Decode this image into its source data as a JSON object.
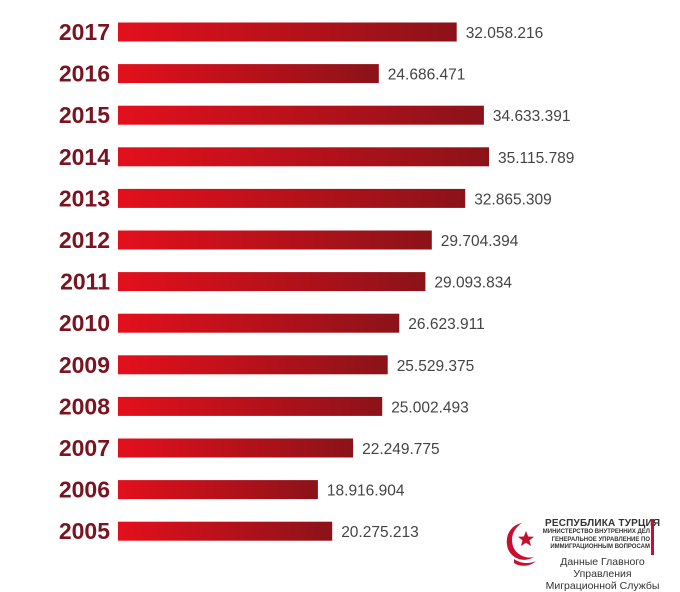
{
  "chart_data": {
    "type": "bar",
    "orientation": "horizontal",
    "categories": [
      "2017",
      "2016",
      "2015",
      "2014",
      "2013",
      "2012",
      "2011",
      "2010",
      "2009",
      "2008",
      "2007",
      "2006",
      "2005"
    ],
    "values": [
      32058216,
      24686471,
      34633391,
      35115789,
      32865309,
      29704394,
      29093834,
      26623911,
      25529375,
      25002493,
      22249775,
      18916904,
      20275213
    ],
    "value_labels": [
      "32.058.216",
      "24.686.471",
      "34.633.391",
      "35.115.789",
      "32.865.309",
      "29.704.394",
      "29.093.834",
      "26.623.911",
      "25.529.375",
      "25.002.493",
      "22.249.775",
      "18.916.904",
      "20.275.213"
    ],
    "title": "",
    "xlabel": "",
    "ylabel": "",
    "xlim": [
      0,
      35115789
    ],
    "grid": false,
    "colors": {
      "bar_start": "#e3101c",
      "bar_end": "#8c1219",
      "year_text": "#7a1420",
      "value_text": "#444444"
    }
  },
  "credit": {
    "line1": "РЕСПУБЛИКА ТУРЦИЯ",
    "line2": "МИНИСТЕРСТВО ВНУТРЕННИХ ДЕЛ",
    "line3": "ГЕНЕРАЛЬНОЕ УПРАВЛЕНИЕ ПО",
    "line4": "ИММИГРАЦИОННЫМ ВОПРОСАМ",
    "line5": "Данные Главного Управления",
    "line6": "Миграционной Службы",
    "emblem": "crescent-star-icon",
    "accent": "#c8102e"
  }
}
